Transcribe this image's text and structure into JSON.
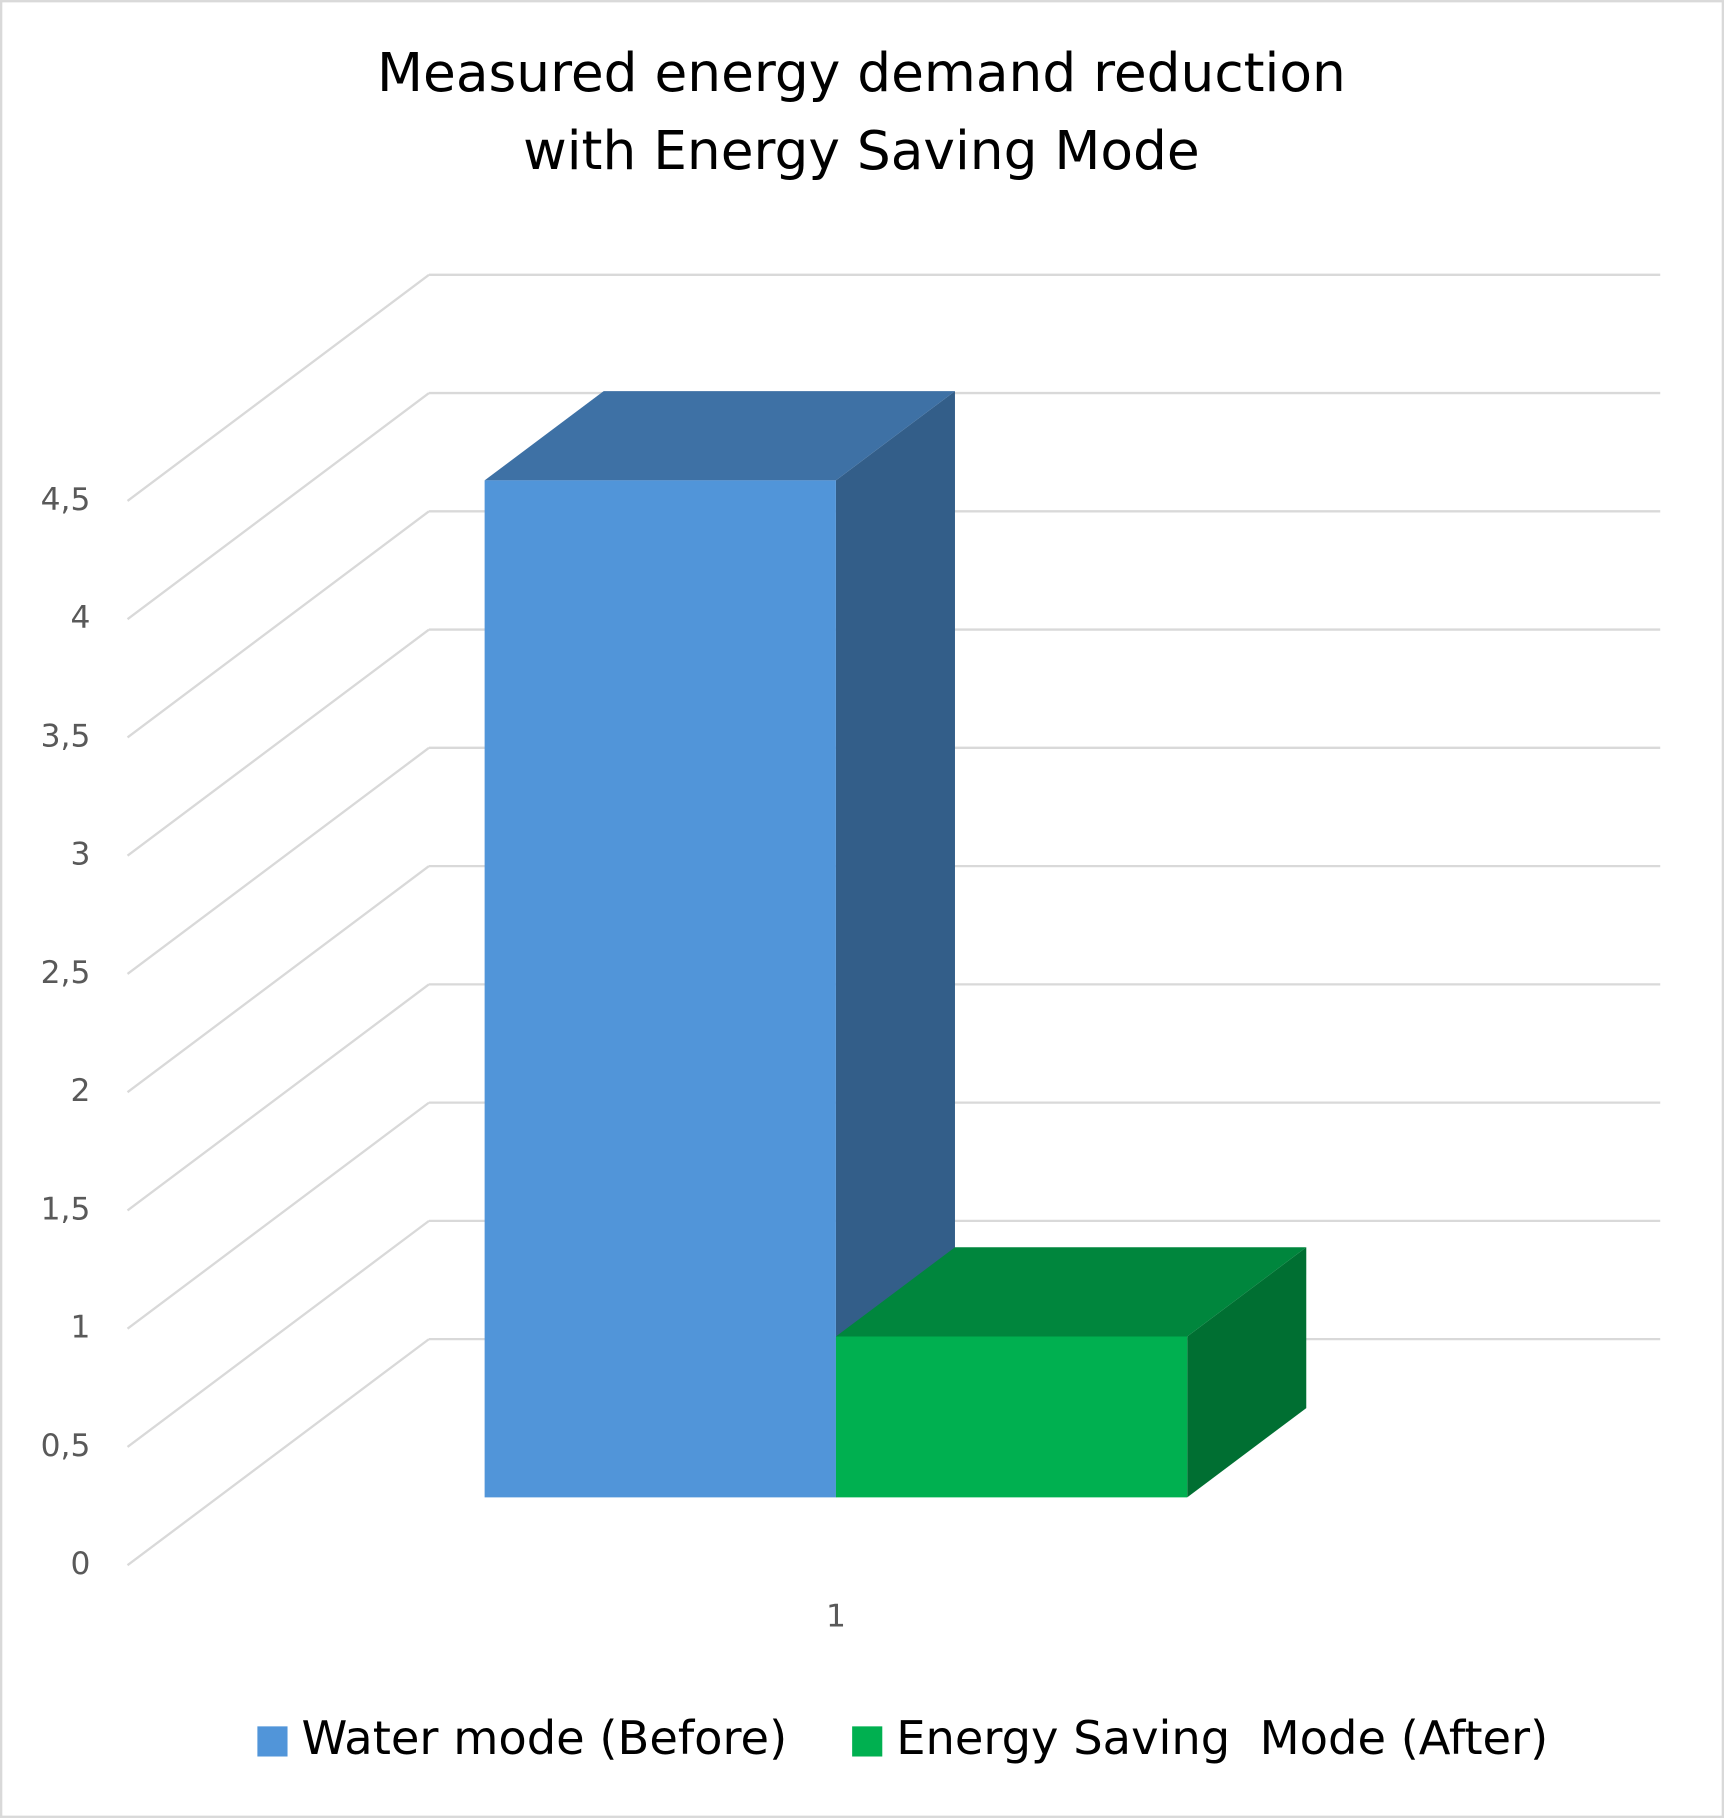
{
  "chart_data": {
    "type": "bar3d",
    "title": [
      "Measured energy demand reduction",
      "with Energy Saving Mode"
    ],
    "categories": [
      "1"
    ],
    "series": [
      {
        "name": "Water mode (Before)",
        "color": "#5195d9",
        "values": [
          4.3
        ]
      },
      {
        "name": "Energy Saving  Mode (After)",
        "color": "#00b050",
        "values": [
          0.68
        ]
      }
    ],
    "ylim": [
      0,
      4.5
    ],
    "yticks": [
      0,
      {
        "value": 0.5,
        "label": "0,5"
      },
      1,
      {
        "value": 1.5,
        "label": "1,5"
      },
      2,
      {
        "value": 2.5,
        "label": "2,5"
      },
      3,
      {
        "value": 3.5,
        "label": "3,5"
      },
      4,
      {
        "value": 4.5,
        "label": "4,5"
      }
    ],
    "grid": true,
    "legend": "bottom"
  }
}
